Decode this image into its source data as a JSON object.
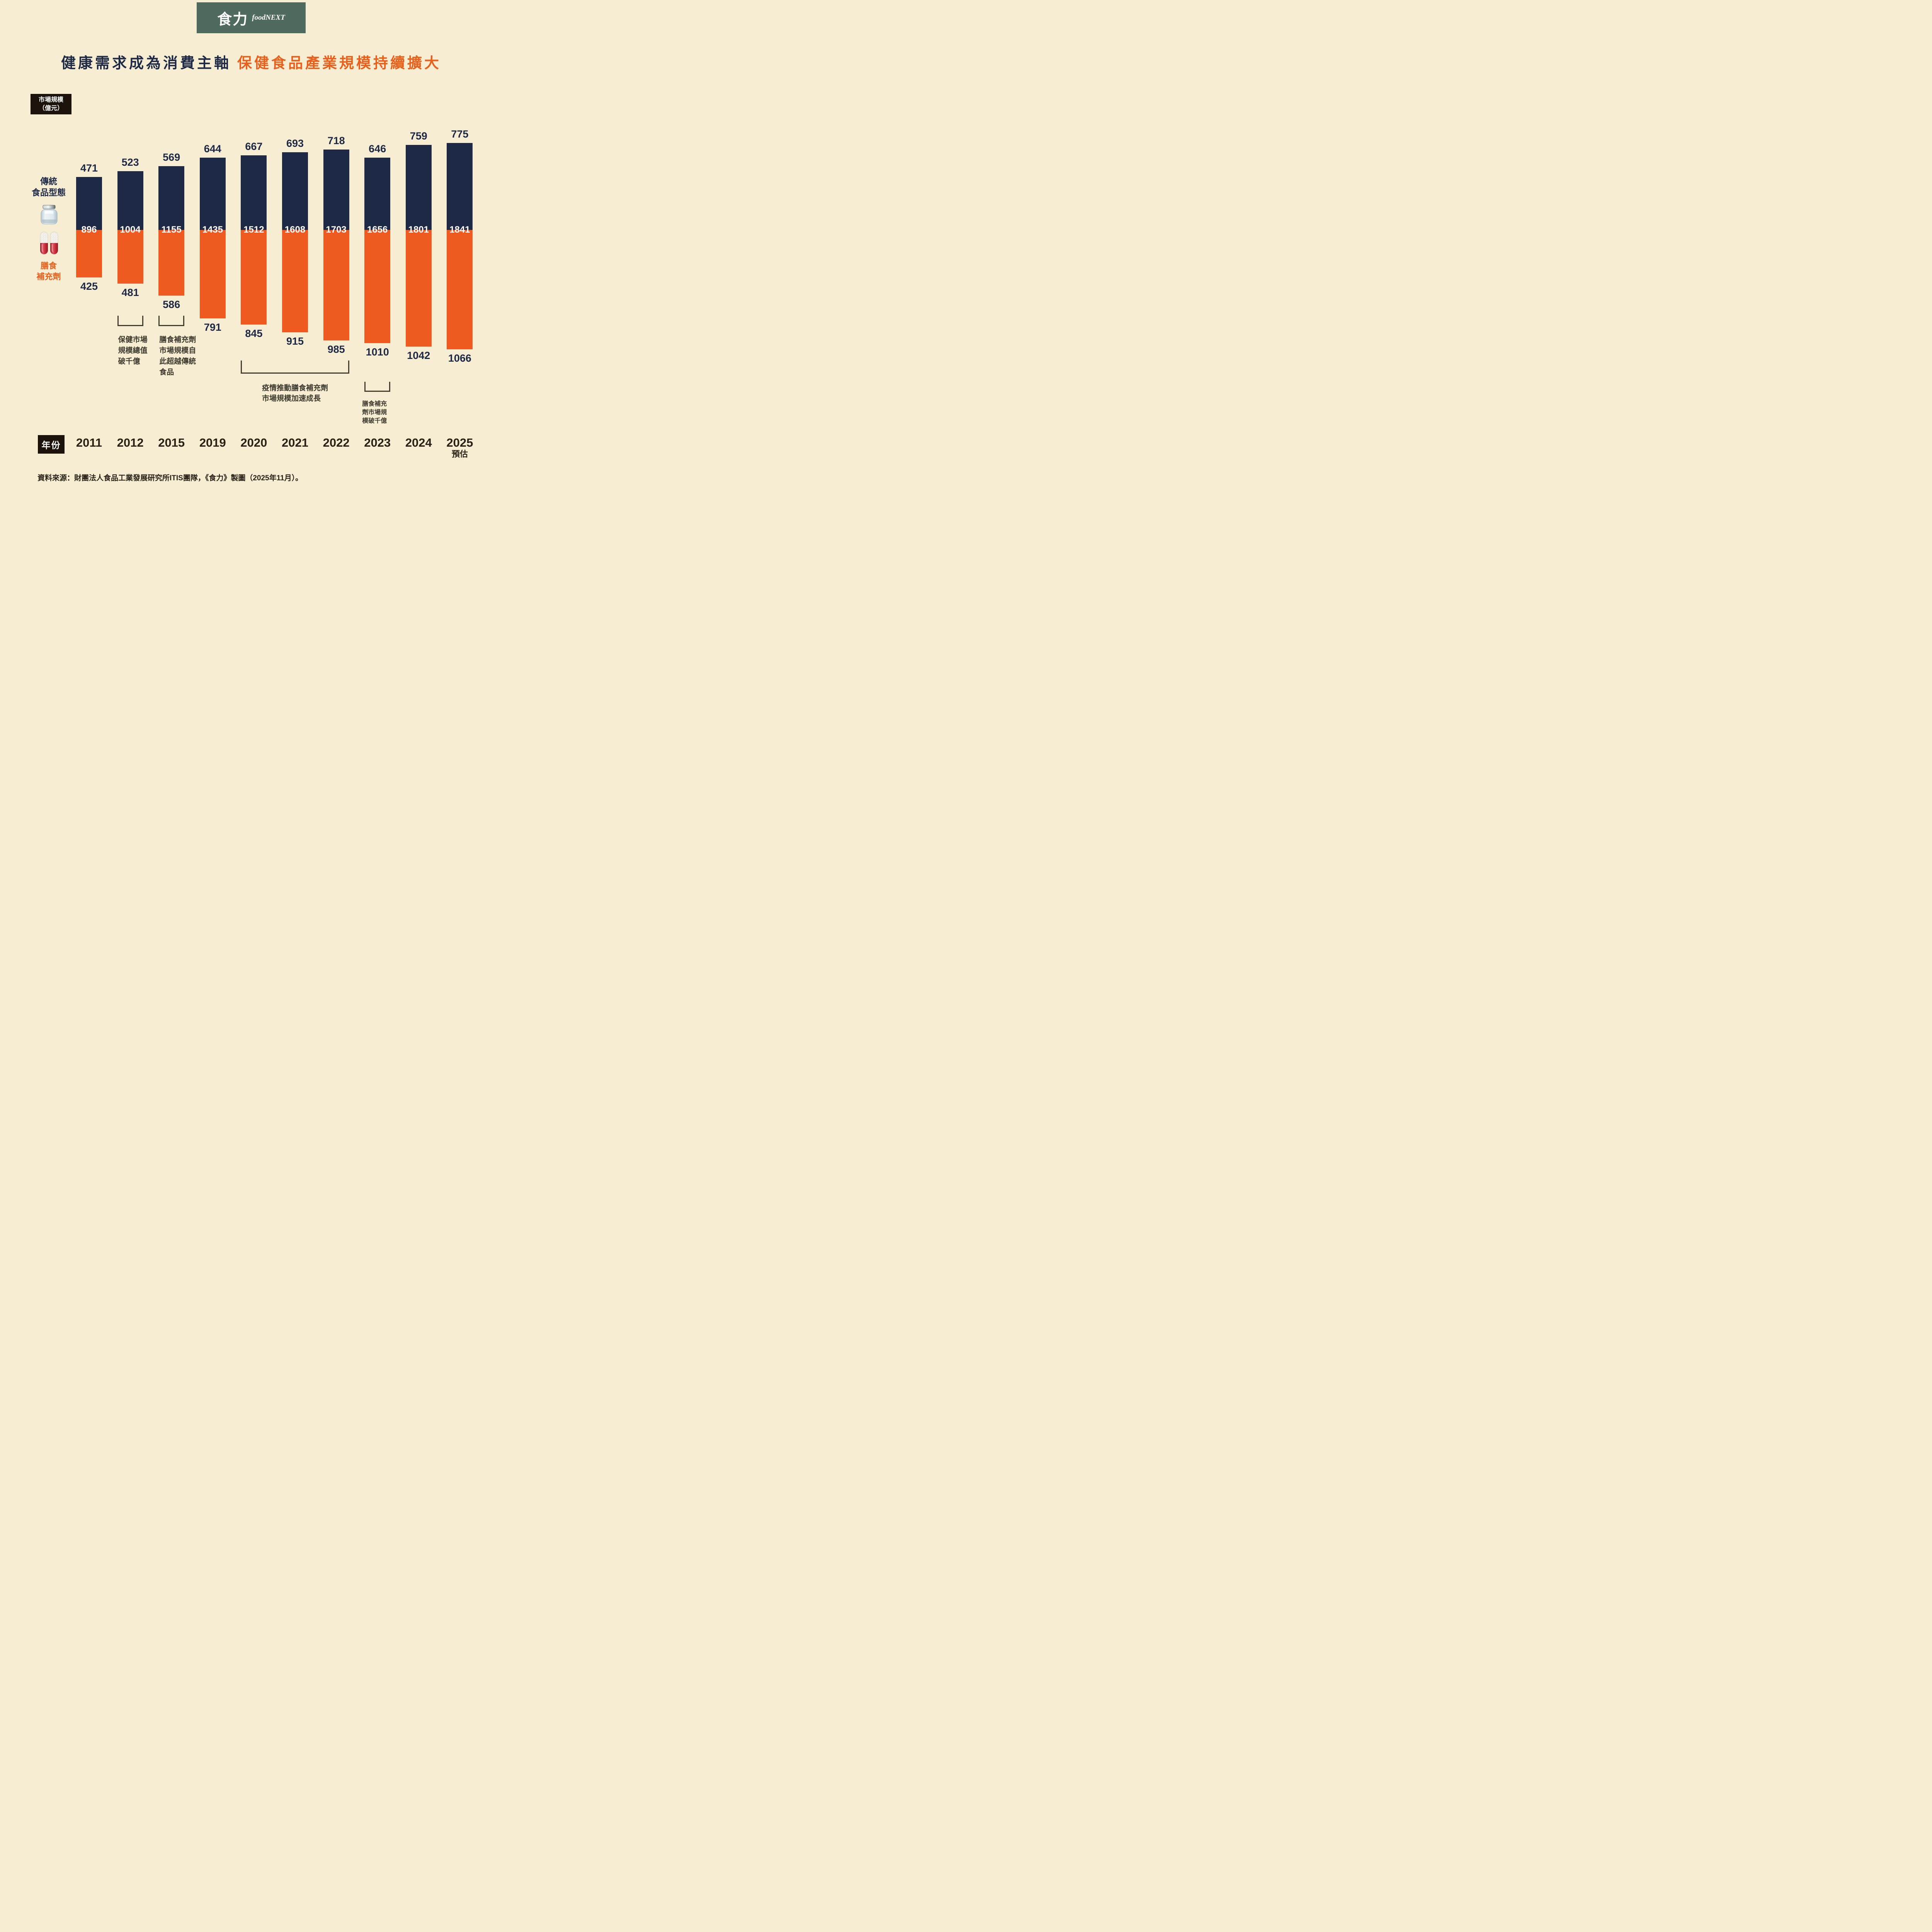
{
  "logo": {
    "zh": "食力",
    "en": "foodNEXT"
  },
  "title": {
    "navy": "健康需求成為消費主軸",
    "orange": "保健食品產業規模持續擴大"
  },
  "y_axis": {
    "line1": "市場規模",
    "line2": "（億元）"
  },
  "x_axis": {
    "label": "年份",
    "forecast_note": "預估",
    "forecast_category": "2025"
  },
  "legend": {
    "traditional": {
      "line1": "傳統",
      "line2": "食品型態",
      "icon": "jar-icon"
    },
    "supplement": {
      "line1": "膳食",
      "line2": "補充劑",
      "icon": "capsules-icon"
    }
  },
  "source": "資料來源：財團法人食品工業發展研究所ITIS團隊，《食力》製圖（2025年11月）。",
  "chart_data": {
    "type": "bar",
    "subtype": "diverging-stacked",
    "title": "健康需求成為消費主軸 保健食品產業規模持續擴大",
    "unit": "億元",
    "categories": [
      "2011",
      "2012",
      "2015",
      "2019",
      "2020",
      "2021",
      "2022",
      "2023",
      "2024",
      "2025"
    ],
    "series": [
      {
        "name": "傳統食品型態",
        "direction": "up",
        "color": "#1e2946",
        "values": [
          471,
          523,
          569,
          644,
          667,
          693,
          718,
          646,
          759,
          775
        ]
      },
      {
        "name": "膳食補充劑",
        "direction": "down",
        "color": "#ee5a20",
        "values": [
          425,
          481,
          586,
          791,
          845,
          915,
          985,
          1010,
          1042,
          1066
        ]
      }
    ],
    "totals": [
      896,
      1004,
      1155,
      1435,
      1512,
      1608,
      1703,
      1656,
      1801,
      1841
    ],
    "legend_position": "left",
    "grid": false
  },
  "annotations": [
    {
      "target": "2012",
      "lines": [
        "保健市場",
        "規模總值",
        "破千億"
      ]
    },
    {
      "target": "2015",
      "lines": [
        "膳食補充劑",
        "市場規模自",
        "此超越傳統",
        "食品"
      ]
    },
    {
      "target": "2020-2022",
      "lines": [
        "疫情推動膳食補充劑",
        "市場規模加速成長"
      ]
    },
    {
      "target": "2023",
      "lines": [
        "膳食補充",
        "劑市場規",
        "模破千億"
      ]
    }
  ]
}
